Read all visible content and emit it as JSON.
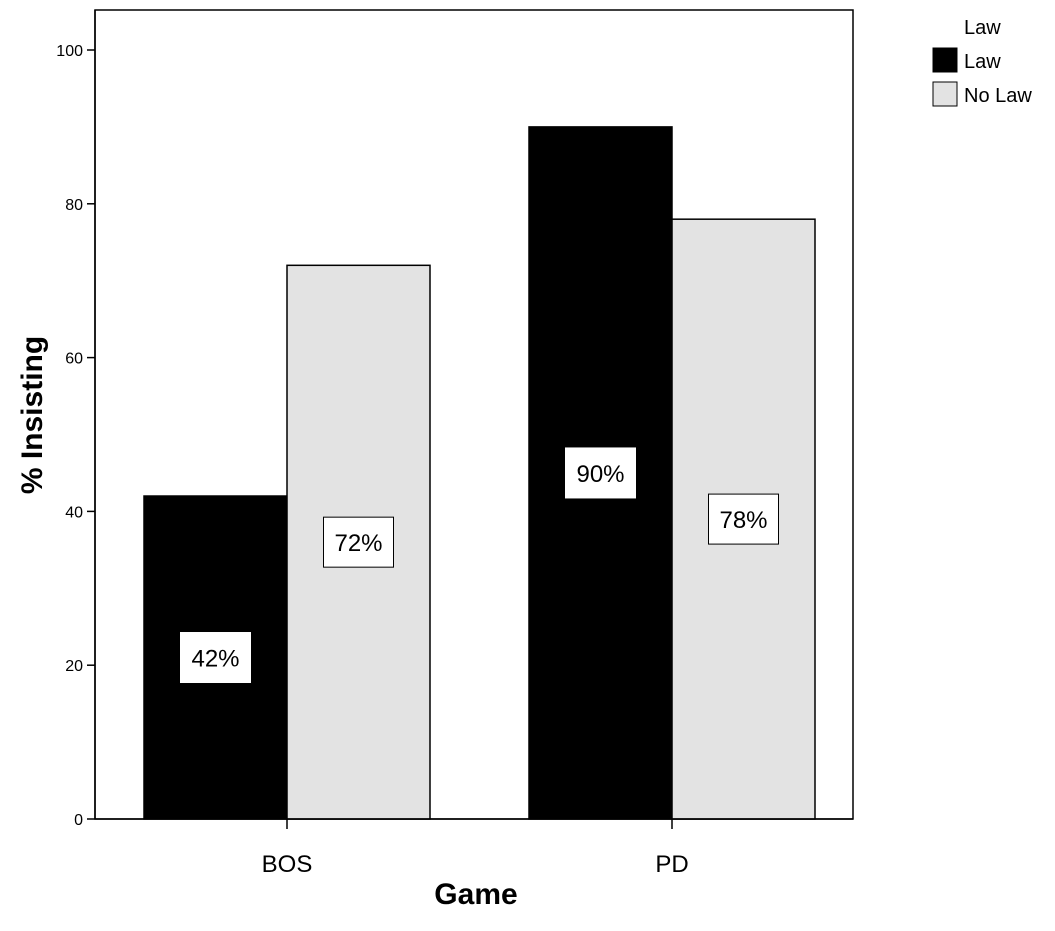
{
  "chart_data": {
    "type": "bar",
    "categories": [
      "BOS",
      "PD"
    ],
    "series": [
      {
        "name": "Law",
        "values": [
          42,
          90
        ],
        "labels": [
          "42%",
          "90%"
        ],
        "color": "#000000"
      },
      {
        "name": "No Law",
        "values": [
          72,
          78
        ],
        "labels": [
          "72%",
          "78%"
        ],
        "color": "#e3e3e3"
      }
    ],
    "xlabel": "Game",
    "ylabel": "% Insisting",
    "ylim": [
      0,
      100
    ],
    "yticks": [
      0,
      20,
      40,
      60,
      80,
      100
    ],
    "grid": false,
    "legend": {
      "title": "Law",
      "placement": "top-right"
    }
  }
}
